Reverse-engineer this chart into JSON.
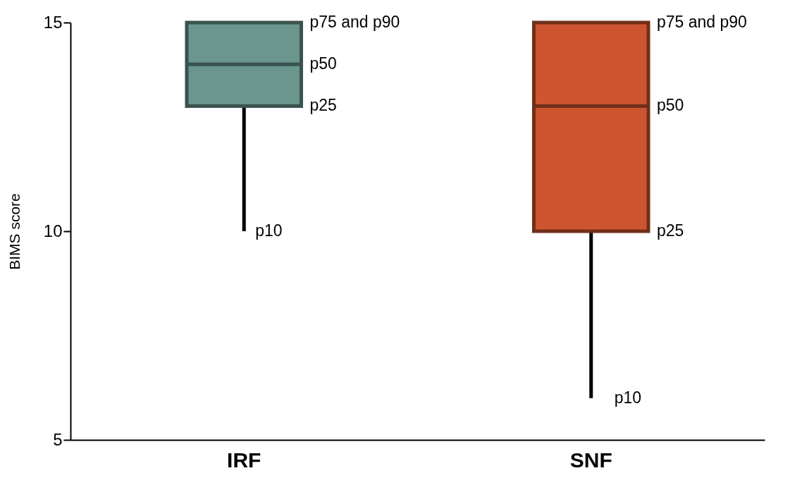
{
  "chart_data": {
    "type": "box",
    "ylabel": "BIMS score",
    "categories": [
      "IRF",
      "SNF"
    ],
    "boxes": [
      {
        "low": 10,
        "q1": 13,
        "median": 14,
        "q3": 15,
        "high": 15
      },
      {
        "low": 6,
        "q1": 10,
        "median": 13,
        "q3": 15,
        "high": 15
      }
    ],
    "colors": [
      "#6a968e",
      "#cc5530"
    ],
    "ylim": [
      5,
      15
    ],
    "yticks": [
      5,
      10,
      15
    ],
    "annotations": [
      "p75 and p90",
      "p50",
      "p25",
      "p10",
      "p75 and p90",
      "p50",
      "p25",
      "p10"
    ]
  }
}
